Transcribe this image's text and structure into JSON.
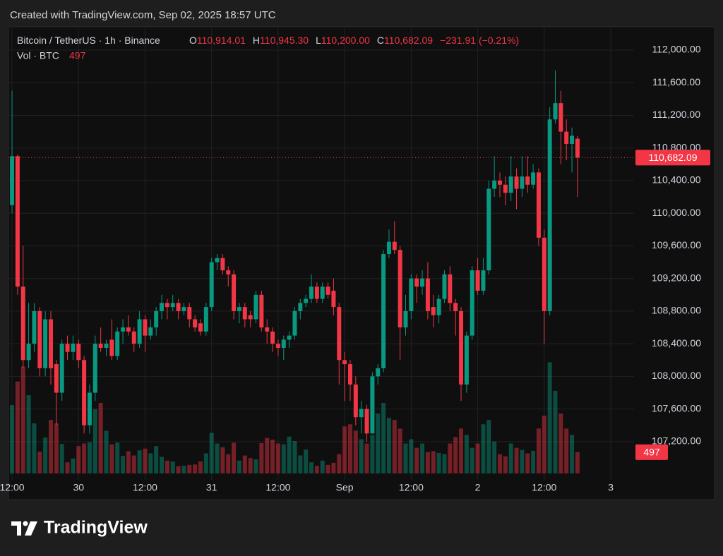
{
  "chart_data": {
    "type": "candlestick",
    "header": "Created with TradingView.com, Sep 02, 2025 18:57 UTC",
    "legend": {
      "title": "Bitcoin / TetherUS · 1h · Binance",
      "items": [
        {
          "key": "O",
          "value": "110,914.01"
        },
        {
          "key": "H",
          "value": "110,945.30"
        },
        {
          "key": "L",
          "value": "110,200.00"
        },
        {
          "key": "C",
          "value": "110,682.09"
        }
      ],
      "change": "−231.91 (−0.21%)"
    },
    "volume_legend": {
      "label": "Vol · BTC",
      "value": "497"
    },
    "up_color": "#089981",
    "down_color": "#f23645",
    "open": [
      110100,
      110700,
      109100,
      108200,
      108400,
      108800,
      108100,
      108700,
      108150,
      107800,
      108400,
      108300,
      108400,
      108200,
      107400,
      107800,
      108400,
      108350,
      108450,
      108250,
      108550,
      108600,
      108550,
      108400,
      108700,
      108500,
      108600,
      108800,
      108900,
      108850,
      108900,
      108800,
      108850,
      108700,
      108650,
      108550,
      108850,
      109400,
      109450,
      109300,
      109250,
      108800,
      108850,
      108750,
      108700,
      109000,
      108600,
      108550,
      108400,
      108350,
      108450,
      108500,
      108800,
      108900,
      108950,
      109100,
      108950,
      109100,
      109050,
      108850,
      108200,
      108150,
      107900,
      107500,
      107600,
      107300,
      108000,
      108100,
      109500,
      109650,
      109550,
      108600,
      108800,
      109200,
      109100,
      109200,
      108850,
      108750,
      108950,
      109250,
      108900,
      108800,
      107900,
      108500,
      109300,
      109050,
      109300,
      110300,
      110400,
      110350,
      110250,
      110450,
      110300,
      110450,
      110350,
      110500,
      109700,
      108800,
      111150,
      111350,
      111000,
      110850,
      110914.01
    ],
    "high": [
      111500,
      110720,
      109600,
      108900,
      108900,
      108850,
      108800,
      108800,
      108200,
      108450,
      108500,
      108500,
      108450,
      108250,
      107900,
      108500,
      108600,
      108450,
      108700,
      108600,
      108700,
      108750,
      108600,
      108800,
      108750,
      108700,
      108850,
      109000,
      108950,
      109000,
      108950,
      108900,
      108900,
      108750,
      108700,
      108900,
      109450,
      109500,
      109500,
      109350,
      109300,
      108900,
      108900,
      108800,
      109050,
      109050,
      108700,
      108600,
      108450,
      108500,
      108550,
      108850,
      108950,
      109000,
      109250,
      109150,
      109150,
      109150,
      109200,
      108900,
      108300,
      108200,
      108000,
      107700,
      107650,
      108050,
      108150,
      109550,
      109800,
      109900,
      109600,
      109000,
      109250,
      109250,
      109300,
      109400,
      109000,
      109000,
      109300,
      109350,
      108950,
      108850,
      108550,
      109350,
      109450,
      109450,
      110400,
      110700,
      110500,
      110450,
      110700,
      110550,
      110700,
      110700,
      110600,
      110550,
      109800,
      111300,
      111750,
      111500,
      111150,
      111050,
      110945.3
    ],
    "low": [
      110000,
      109000,
      108100,
      108100,
      108300,
      108000,
      108000,
      107900,
      107400,
      107700,
      108200,
      108200,
      108100,
      107300,
      107300,
      107700,
      108300,
      108250,
      108200,
      108200,
      108400,
      108500,
      108300,
      108350,
      108300,
      108450,
      108500,
      108700,
      108700,
      108800,
      108700,
      108750,
      108600,
      108550,
      108500,
      108500,
      108800,
      109300,
      109250,
      109100,
      108700,
      108650,
      108600,
      108600,
      108650,
      108550,
      108400,
      108300,
      108250,
      108200,
      108350,
      108450,
      108700,
      108850,
      108900,
      108900,
      108900,
      108950,
      108750,
      107900,
      107700,
      107700,
      107400,
      107300,
      107200,
      107300,
      107900,
      108050,
      109450,
      109500,
      108200,
      108500,
      108700,
      108900,
      109000,
      108700,
      108600,
      108650,
      108900,
      108800,
      108500,
      107700,
      107800,
      108450,
      109000,
      109000,
      109250,
      110200,
      110200,
      110100,
      110150,
      110050,
      110200,
      110250,
      110300,
      109600,
      108400,
      108750,
      111100,
      110600,
      110650,
      110500,
      110200
    ],
    "close": [
      110700,
      109100,
      108200,
      108400,
      108800,
      108100,
      108700,
      108100,
      107800,
      108400,
      108300,
      108400,
      108200,
      107400,
      107800,
      108400,
      108350,
      108400,
      108250,
      108550,
      108600,
      108550,
      108400,
      108700,
      108500,
      108600,
      108800,
      108900,
      108850,
      108900,
      108800,
      108850,
      108700,
      108600,
      108550,
      108850,
      109400,
      109450,
      109300,
      109250,
      108800,
      108850,
      108700,
      108700,
      109000,
      108600,
      108550,
      108400,
      108350,
      108450,
      108500,
      108800,
      108900,
      108950,
      109100,
      108950,
      109100,
      109000,
      108850,
      108200,
      108150,
      107900,
      107500,
      107600,
      107300,
      108000,
      108100,
      109500,
      109650,
      109550,
      108600,
      108800,
      109200,
      109100,
      109200,
      108800,
      108750,
      108950,
      109250,
      108900,
      108800,
      107900,
      108500,
      109300,
      109050,
      109300,
      110300,
      110400,
      110350,
      110250,
      110450,
      110300,
      110450,
      110350,
      110500,
      109700,
      108800,
      111150,
      111350,
      111000,
      110850,
      110950,
      110682.09
    ],
    "volume": [
      1600,
      2150,
      2500,
      1830,
      1170,
      510,
      840,
      1250,
      1170,
      690,
      260,
      350,
      640,
      700,
      730,
      1500,
      1650,
      1000,
      680,
      720,
      410,
      520,
      420,
      540,
      580,
      470,
      640,
      390,
      300,
      280,
      170,
      180,
      200,
      210,
      280,
      470,
      950,
      700,
      610,
      450,
      720,
      300,
      420,
      360,
      330,
      710,
      830,
      790,
      700,
      680,
      860,
      760,
      420,
      560,
      260,
      180,
      300,
      200,
      250,
      450,
      1100,
      1150,
      1000,
      800,
      700,
      900,
      1400,
      1650,
      1300,
      1250,
      1050,
      700,
      800,
      600,
      700,
      500,
      520,
      480,
      450,
      700,
      850,
      1050,
      900,
      600,
      700,
      1150,
      1250,
      750,
      450,
      400,
      700,
      600,
      550,
      470,
      530,
      1050,
      1350,
      2600,
      1930,
      1400,
      1050,
      900,
      497
    ],
    "last_price_label": "110,682.09",
    "last_volume_label": "497",
    "volume_lim": [
      0,
      3300
    ],
    "ylim": [
      106732,
      112268
    ],
    "yticks": [
      {
        "value": 107200,
        "label": "107,200.00"
      },
      {
        "value": 107600,
        "label": "107,600.00"
      },
      {
        "value": 108000,
        "label": "108,000.00"
      },
      {
        "value": 108400,
        "label": "108,400.00"
      },
      {
        "value": 108800,
        "label": "108,800.00"
      },
      {
        "value": 109200,
        "label": "109,200.00"
      },
      {
        "value": 109600,
        "label": "109,600.00"
      },
      {
        "value": 110000,
        "label": "110,000.00"
      },
      {
        "value": 110400,
        "label": "110,400.00"
      },
      {
        "value": 110800,
        "label": "110,800.00"
      },
      {
        "value": 111200,
        "label": "111,200.00"
      },
      {
        "value": 111600,
        "label": "111,600.00"
      },
      {
        "value": 112000,
        "label": "112,000.00"
      }
    ],
    "xlim": [
      -0.64,
      112.2
    ],
    "xticks": [
      {
        "value": 0,
        "label": "12:00"
      },
      {
        "value": 12,
        "label": "30"
      },
      {
        "value": 24,
        "label": "12:00"
      },
      {
        "value": 36,
        "label": "31"
      },
      {
        "value": 48,
        "label": "12:00"
      },
      {
        "value": 60,
        "label": "Sep"
      },
      {
        "value": 72,
        "label": "12:00"
      },
      {
        "value": 84,
        "label": "2"
      },
      {
        "value": 96,
        "label": "12:00"
      },
      {
        "value": 108,
        "label": "3"
      }
    ],
    "grid": true,
    "brand": "TradingView"
  }
}
